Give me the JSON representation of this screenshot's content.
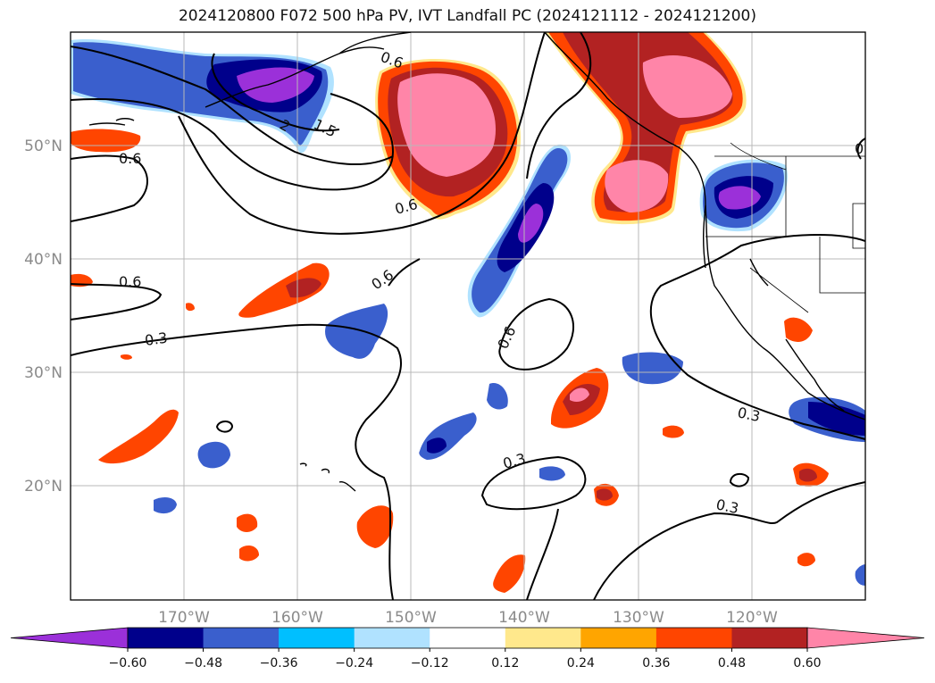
{
  "title": "2024120800 F072 500 hPa PV, IVT Landfall PC (2024121112 - 2024121200)",
  "map": {
    "projection": "PlateCarree",
    "lon_range": [
      -180,
      -110
    ],
    "lat_range": [
      10,
      60
    ],
    "lon_ticks": [
      "170°W",
      "160°W",
      "150°W",
      "140°W",
      "130°W",
      "120°W"
    ],
    "lat_ticks": [
      "50°N",
      "40°N",
      "30°N",
      "20°N"
    ],
    "gridlines": true
  },
  "contours": {
    "field": "500 hPa PV",
    "labels": [
      "1.5",
      "2",
      "0.6",
      "0.6",
      "0.6",
      "0.6",
      "0.6",
      "0.6",
      "0.3",
      "0.3",
      "0.3",
      "0.3",
      "0.6"
    ],
    "label_values": [
      1.5,
      2,
      0.6,
      0.6,
      0.6,
      0.6,
      0.6,
      0.6,
      0.3,
      0.3,
      0.3,
      0.3,
      0.6
    ]
  },
  "shading": {
    "field": "IVT Landfall PC",
    "negative_color_regions": [
      "North Pacific near 160°W 55°N",
      "Central Pacific 140°W 40-48°N",
      "Pacific NW coast 45°N",
      "Baja 25°N"
    ],
    "positive_color_regions": [
      "Gulf of Alaska 150°W 50-58°N",
      "British Columbia coast 130°W 45-60°N",
      "Subtropics scattered"
    ]
  },
  "colorbar": {
    "ticks": [
      "−0.60",
      "−0.48",
      "−0.36",
      "−0.24",
      "−0.12",
      "0.12",
      "0.24",
      "0.36",
      "0.48",
      "0.60"
    ],
    "tick_values": [
      -0.6,
      -0.48,
      -0.36,
      -0.24,
      -0.12,
      0.12,
      0.24,
      0.36,
      0.48,
      0.6
    ],
    "colors": [
      "#9b30d9",
      "#00008b",
      "#3a5fcd",
      "#00bfff",
      "#b0e2ff",
      "#ffffff",
      "#ffe88c",
      "#ffa500",
      "#ff4500",
      "#b22222",
      "#ff85a8"
    ],
    "extend": "both"
  }
}
